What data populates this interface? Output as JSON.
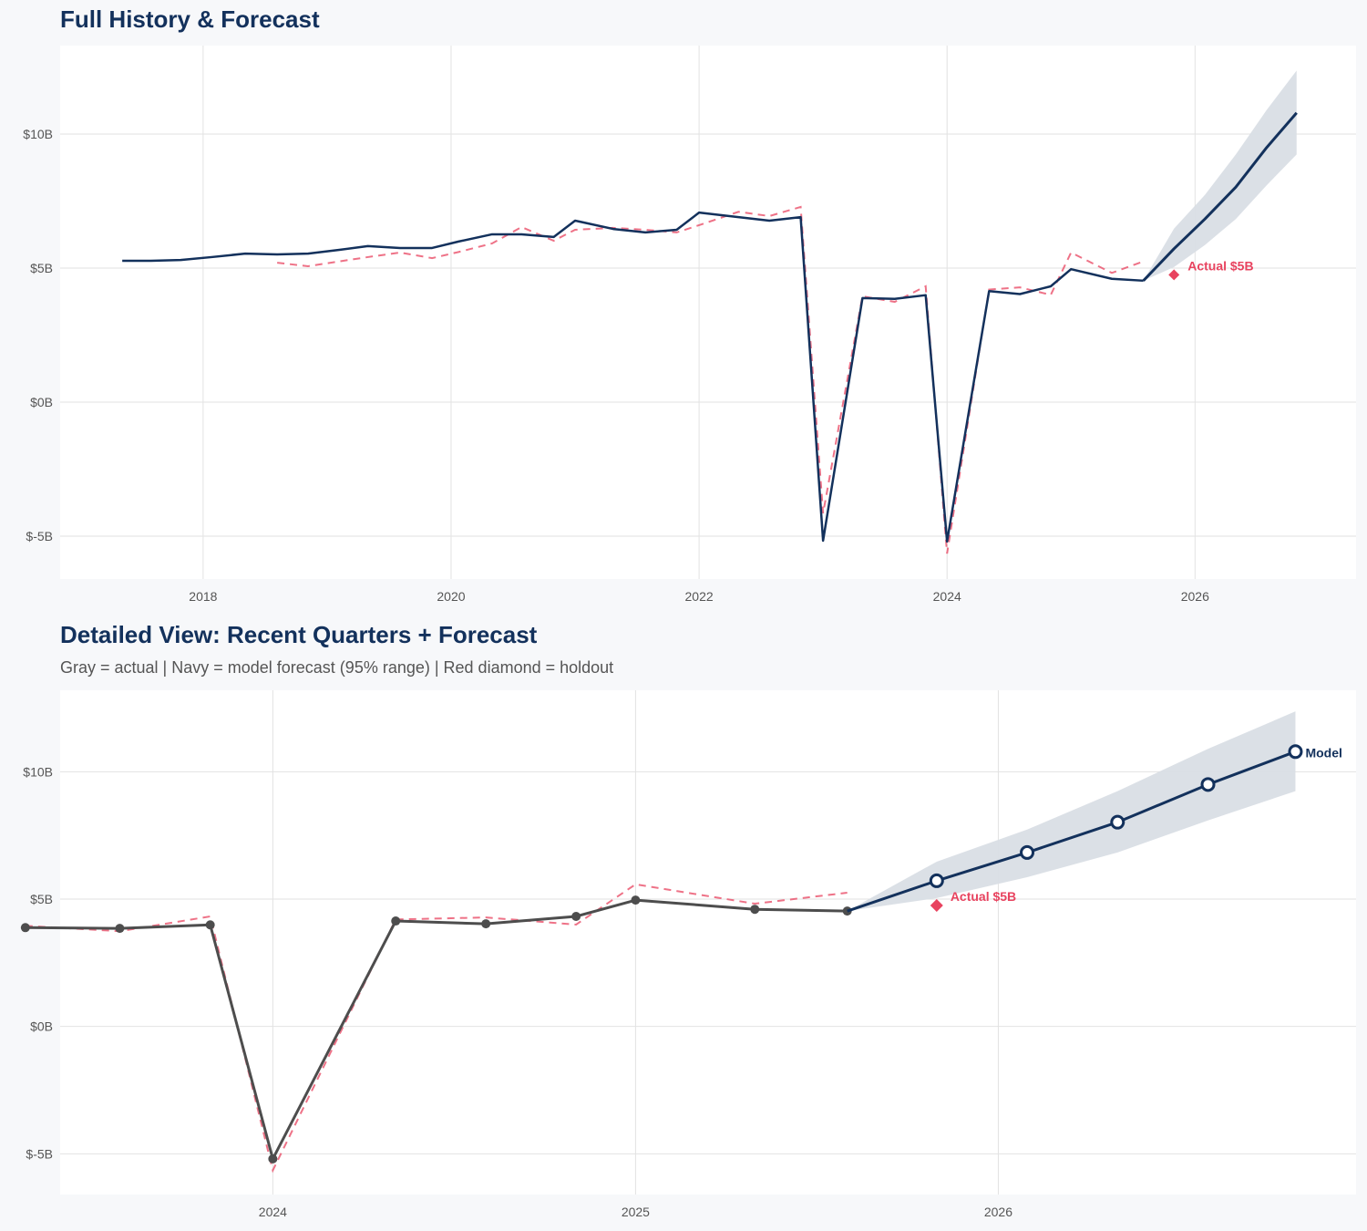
{
  "colors": {
    "navy": "#13315c",
    "gray": "#4d4d4d",
    "red": "#e8435f",
    "band": "#d9dee5",
    "grid": "#e2e2e2"
  },
  "chart_data": [
    {
      "type": "line",
      "title": "Full History & Forecast",
      "xlim": [
        "2016-11-06",
        "2027-04-20"
      ],
      "ylim": [
        -6.6,
        13.3
      ],
      "x_ticks": [
        "2018",
        "2020",
        "2022",
        "2024",
        "2026"
      ],
      "y_ticks": [
        {
          "value": 10,
          "label": "$10B"
        },
        {
          "value": 5,
          "label": "$5B"
        },
        {
          "value": 0,
          "label": "$0B"
        },
        {
          "value": -5,
          "label": "$-5B"
        }
      ],
      "grid": true,
      "actual_color": "navy",
      "show_actual_markers": false,
      "show_forecast_markers": false,
      "holdout_label": "Actual $5B",
      "model_label": ""
    },
    {
      "type": "line",
      "title": "Detailed View: Recent Quarters + Forecast",
      "subtitle": "Gray = actual  |  Navy = model forecast (95% range)  |  Red diamond = holdout",
      "xlim": [
        "2023-06-01",
        "2026-12-27"
      ],
      "ylim": [
        -6.6,
        13.2
      ],
      "x_ticks": [
        "2024",
        "2025",
        "2026"
      ],
      "y_ticks": [
        {
          "value": 10,
          "label": "$10B"
        },
        {
          "value": 5,
          "label": "$5B"
        },
        {
          "value": 0,
          "label": "$0B"
        },
        {
          "value": -5,
          "label": "$-5B"
        }
      ],
      "grid": true,
      "actual_color": "gray",
      "show_actual_markers": true,
      "show_forecast_markers": true,
      "holdout_label": "Actual $5B",
      "model_label": "Model"
    }
  ],
  "series": {
    "actual": [
      [
        "2017-05-08",
        5.27
      ],
      [
        "2017-07-31",
        5.27
      ],
      [
        "2017-10-27",
        5.3
      ],
      [
        "2018-01-26",
        5.41
      ],
      [
        "2018-05-05",
        5.54
      ],
      [
        "2018-08-07",
        5.51
      ],
      [
        "2018-11-06",
        5.54
      ],
      [
        "2019-02-06",
        5.68
      ],
      [
        "2019-05-01",
        5.82
      ],
      [
        "2019-08-04",
        5.75
      ],
      [
        "2019-11-06",
        5.75
      ],
      [
        "2020-01-23",
        5.99
      ],
      [
        "2020-05-01",
        6.26
      ],
      [
        "2020-07-27",
        6.26
      ],
      [
        "2020-10-30",
        6.16
      ],
      [
        "2021-01-01",
        6.77
      ],
      [
        "2021-04-23",
        6.46
      ],
      [
        "2021-07-27",
        6.33
      ],
      [
        "2021-10-27",
        6.43
      ],
      [
        "2022-01-01",
        7.07
      ],
      [
        "2022-04-27",
        6.9
      ],
      [
        "2022-07-27",
        6.77
      ],
      [
        "2022-10-27",
        6.9
      ],
      [
        "2023-01-01",
        -5.17
      ],
      [
        "2023-04-27",
        3.88
      ],
      [
        "2023-07-31",
        3.85
      ],
      [
        "2023-10-30",
        3.99
      ],
      [
        "2024-01-01",
        -5.2
      ],
      [
        "2024-05-04",
        4.14
      ],
      [
        "2024-08-03",
        4.03
      ],
      [
        "2024-11-02",
        4.32
      ],
      [
        "2025-01-01",
        4.96
      ],
      [
        "2025-05-01",
        4.6
      ],
      [
        "2025-08-02",
        4.53
      ]
    ],
    "fitted": [
      [
        "2018-08-07",
        5.2
      ],
      [
        "2018-11-06",
        5.07
      ],
      [
        "2019-02-06",
        5.25
      ],
      [
        "2019-05-01",
        5.41
      ],
      [
        "2019-08-04",
        5.58
      ],
      [
        "2019-11-06",
        5.37
      ],
      [
        "2020-01-23",
        5.6
      ],
      [
        "2020-05-01",
        5.92
      ],
      [
        "2020-07-27",
        6.53
      ],
      [
        "2020-10-30",
        6.02
      ],
      [
        "2021-01-01",
        6.43
      ],
      [
        "2021-04-23",
        6.5
      ],
      [
        "2021-07-27",
        6.43
      ],
      [
        "2021-10-27",
        6.33
      ],
      [
        "2022-01-01",
        6.6
      ],
      [
        "2022-04-27",
        7.1
      ],
      [
        "2022-07-27",
        6.94
      ],
      [
        "2022-10-27",
        7.28
      ],
      [
        "2023-01-01",
        -4.15
      ],
      [
        "2023-04-27",
        3.95
      ],
      [
        "2023-07-31",
        3.74
      ],
      [
        "2023-10-30",
        4.32
      ],
      [
        "2024-01-01",
        -5.65
      ],
      [
        "2024-05-04",
        4.2
      ],
      [
        "2024-08-03",
        4.28
      ],
      [
        "2024-11-02",
        4.0
      ],
      [
        "2025-01-01",
        5.58
      ],
      [
        "2025-05-01",
        4.82
      ],
      [
        "2025-08-02",
        5.25
      ]
    ],
    "forecast": [
      [
        "2025-08-02",
        4.53,
        4.53,
        4.53
      ],
      [
        "2025-10-31",
        5.72,
        5.04,
        6.47
      ],
      [
        "2026-01-30",
        6.83,
        5.86,
        7.73
      ],
      [
        "2026-05-01",
        8.02,
        6.83,
        9.24
      ],
      [
        "2026-07-31",
        9.5,
        8.09,
        10.9
      ],
      [
        "2026-10-27",
        10.79,
        9.24,
        12.37
      ]
    ],
    "holdout": [
      "2025-10-31",
      4.75
    ]
  }
}
